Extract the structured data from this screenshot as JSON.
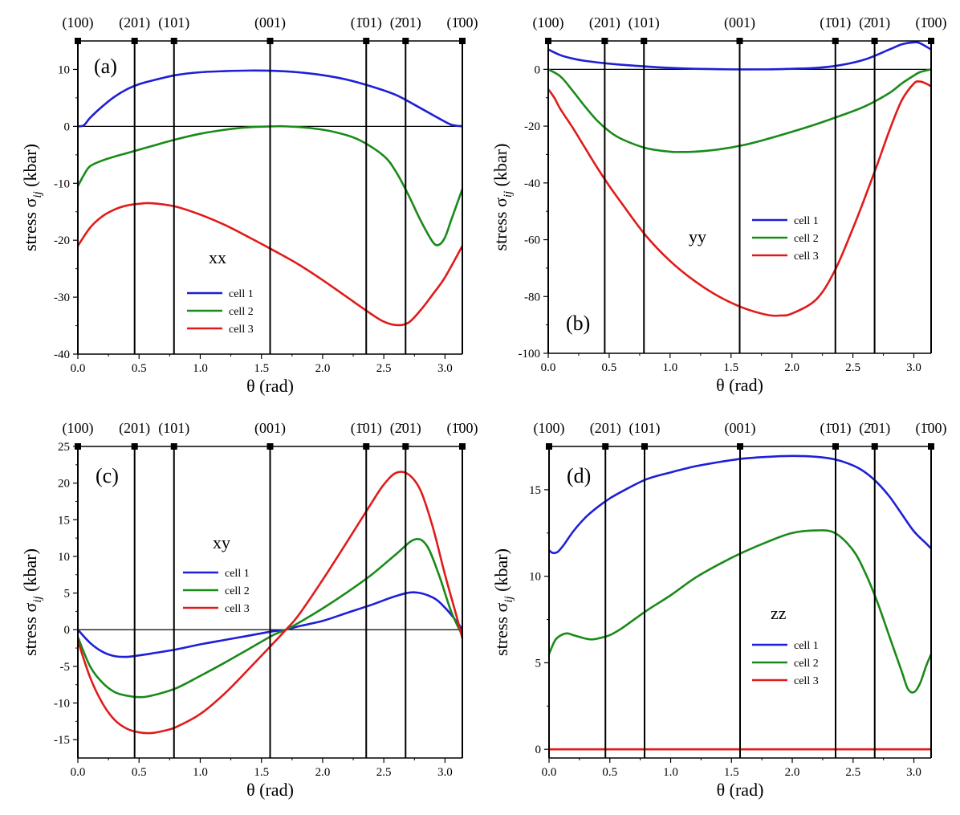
{
  "figure": {
    "xlabel": "θ (rad)",
    "ylabel_main": "stress σ",
    "ylabel_sub": "ij",
    "ylabel_unit": " (kbar)",
    "directions": [
      {
        "label": "(100)",
        "theta": 0.0
      },
      {
        "label": "(201)",
        "theta": 0.4636
      },
      {
        "label": "(101)",
        "theta": 0.7854
      },
      {
        "label": "(001)",
        "theta": 1.5708
      },
      {
        "label": "(1̄01)",
        "theta": 2.3562
      },
      {
        "label": "(2̄01)",
        "theta": 2.6779
      },
      {
        "label": "(1̄00)",
        "theta": 3.1416
      }
    ],
    "colors": {
      "cell1": "#1f1fd6",
      "cell2": "#1a8a1a",
      "cell3": "#e01b1b",
      "axis": "#000000"
    }
  },
  "chart_data": [
    {
      "id": "a",
      "type": "line",
      "panel_label": "(a)",
      "component": "xx",
      "xlim": [
        0,
        3.1416
      ],
      "ylim": [
        -40,
        15
      ],
      "xticks": [
        0.0,
        0.5,
        1.0,
        1.5,
        2.0,
        2.5,
        3.0
      ],
      "xtick_labels": [
        "0.0",
        "0.5",
        "1.0",
        "1.5",
        "2.0",
        "2.5",
        "3.0"
      ],
      "yticks": [
        -40,
        -30,
        -20,
        -10,
        0,
        10
      ],
      "ytick_labels": [
        "-40",
        "-30",
        "-20",
        "-10",
        "0",
        "10"
      ],
      "legend": [
        "cell 1",
        "cell 2",
        "cell 3"
      ],
      "series": [
        {
          "name": "cell 1",
          "x": [
            0,
            0.05,
            0.1,
            0.2,
            0.3,
            0.4,
            0.5,
            0.6,
            0.8,
            1.0,
            1.2,
            1.4,
            1.6,
            1.8,
            2.0,
            2.2,
            2.4,
            2.6,
            2.8,
            2.95,
            3.05,
            3.1416
          ],
          "y": [
            0,
            0.2,
            1.5,
            3.5,
            5.2,
            6.5,
            7.4,
            8.0,
            9.0,
            9.5,
            9.7,
            9.8,
            9.75,
            9.5,
            9.0,
            8.2,
            7.0,
            5.5,
            3.2,
            1.4,
            0.3,
            0
          ]
        },
        {
          "name": "cell 2",
          "x": [
            0,
            0.05,
            0.1,
            0.2,
            0.3,
            0.4,
            0.5,
            0.6,
            0.8,
            1.0,
            1.2,
            1.4,
            1.6,
            1.7,
            1.9,
            2.1,
            2.3,
            2.5,
            2.6,
            2.7,
            2.8,
            2.9,
            2.95,
            3.0,
            3.05,
            3.1416
          ],
          "y": [
            -10.5,
            -8.5,
            -7.0,
            -6.0,
            -5.3,
            -4.7,
            -4.1,
            -3.5,
            -2.3,
            -1.3,
            -0.6,
            -0.15,
            0,
            0,
            -0.3,
            -1.0,
            -2.4,
            -5.2,
            -8.0,
            -12.0,
            -16.5,
            -20.3,
            -20.8,
            -19.5,
            -16.5,
            -11.0
          ]
        },
        {
          "name": "cell 3",
          "x": [
            0,
            0.1,
            0.2,
            0.3,
            0.4,
            0.5,
            0.6,
            0.8,
            1.0,
            1.2,
            1.4,
            1.6,
            1.8,
            2.0,
            2.2,
            2.4,
            2.5,
            2.6,
            2.7,
            2.8,
            2.9,
            3.0,
            3.1416
          ],
          "y": [
            -21,
            -17.8,
            -15.8,
            -14.6,
            -13.9,
            -13.6,
            -13.5,
            -14.1,
            -15.5,
            -17.3,
            -19.5,
            -21.8,
            -24.2,
            -27.0,
            -30.0,
            -33.0,
            -34.3,
            -34.9,
            -34.5,
            -32.3,
            -29.5,
            -26.5,
            -21
          ]
        }
      ]
    },
    {
      "id": "b",
      "type": "line",
      "panel_label": "(b)",
      "component": "yy",
      "xlim": [
        0,
        3.1416
      ],
      "ylim": [
        -100,
        10
      ],
      "xticks": [
        0.0,
        0.5,
        1.0,
        1.5,
        2.0,
        2.5,
        3.0
      ],
      "xtick_labels": [
        "0.0",
        "0.5",
        "1.0",
        "1.5",
        "2.0",
        "2.5",
        "3.0"
      ],
      "yticks": [
        -100,
        -80,
        -60,
        -40,
        -20,
        0
      ],
      "ytick_labels": [
        "-100",
        "-80",
        "-60",
        "-40",
        "-20",
        "0"
      ],
      "legend": [
        "cell 1",
        "cell 2",
        "cell 3"
      ],
      "series": [
        {
          "name": "cell 1",
          "x": [
            0,
            0.1,
            0.2,
            0.3,
            0.5,
            0.8,
            1.0,
            1.2,
            1.5,
            1.8,
            2.0,
            2.2,
            2.4,
            2.6,
            2.8,
            2.9,
            3.0,
            3.05,
            3.1416
          ],
          "y": [
            7,
            5,
            3.8,
            3.0,
            2.0,
            1.0,
            0.5,
            0.2,
            0,
            0,
            0.2,
            0.5,
            1.5,
            3.5,
            7.0,
            8.8,
            9.5,
            9.2,
            7
          ]
        },
        {
          "name": "cell 2",
          "x": [
            0,
            0.1,
            0.2,
            0.3,
            0.4,
            0.5,
            0.6,
            0.8,
            1.0,
            1.1,
            1.2,
            1.4,
            1.6,
            1.8,
            2.0,
            2.2,
            2.4,
            2.6,
            2.8,
            2.9,
            3.0,
            3.05,
            3.1416
          ],
          "y": [
            0,
            -2.5,
            -7.5,
            -13.0,
            -18.0,
            -21.8,
            -24.5,
            -27.7,
            -29.0,
            -29.1,
            -29.0,
            -28.2,
            -26.7,
            -24.5,
            -22.0,
            -19.3,
            -16.3,
            -13.0,
            -8.3,
            -5.0,
            -2.2,
            -1.0,
            0
          ]
        },
        {
          "name": "cell 3",
          "x": [
            0,
            0.05,
            0.1,
            0.2,
            0.3,
            0.4,
            0.5,
            0.6,
            0.8,
            1.0,
            1.2,
            1.4,
            1.6,
            1.8,
            1.9,
            2.0,
            2.2,
            2.35,
            2.5,
            2.6,
            2.7,
            2.8,
            2.9,
            3.0,
            3.05,
            3.1,
            3.1416
          ],
          "y": [
            -7,
            -10,
            -14,
            -20.5,
            -27.5,
            -34.5,
            -41.0,
            -47.0,
            -58.5,
            -67.5,
            -74.5,
            -80.0,
            -84.0,
            -86.5,
            -86.7,
            -86.0,
            -81.0,
            -71.0,
            -56.0,
            -45.0,
            -33.5,
            -21.5,
            -11.0,
            -5.0,
            -4.3,
            -5.0,
            -6
          ]
        }
      ]
    },
    {
      "id": "c",
      "type": "line",
      "panel_label": "(c)",
      "component": "xy",
      "xlim": [
        0,
        3.1416
      ],
      "ylim": [
        -17.5,
        25
      ],
      "xticks": [
        0.0,
        0.5,
        1.0,
        1.5,
        2.0,
        2.5,
        3.0
      ],
      "xtick_labels": [
        "0.0",
        "0.5",
        "1.0",
        "1.5",
        "2.0",
        "2.5",
        "3.0"
      ],
      "yticks": [
        -15,
        -10,
        -5,
        0,
        5,
        10,
        15,
        20,
        25
      ],
      "ytick_labels": [
        "-15",
        "-10",
        "-5",
        "0",
        "5",
        "10",
        "15",
        "20",
        "25"
      ],
      "legend": [
        "cell 1",
        "cell 2",
        "cell 3"
      ],
      "series": [
        {
          "name": "cell 1",
          "x": [
            0,
            0.1,
            0.2,
            0.3,
            0.4,
            0.5,
            0.6,
            0.8,
            1.0,
            1.2,
            1.4,
            1.6,
            1.7,
            1.8,
            2.0,
            2.2,
            2.4,
            2.6,
            2.75,
            2.9,
            3.0,
            3.1,
            3.1416
          ],
          "y": [
            0,
            -1.8,
            -3.0,
            -3.6,
            -3.7,
            -3.5,
            -3.25,
            -2.7,
            -2.0,
            -1.4,
            -0.8,
            -0.2,
            0,
            0.45,
            1.2,
            2.3,
            3.4,
            4.6,
            5.1,
            4.4,
            3.0,
            1.0,
            0
          ]
        },
        {
          "name": "cell 2",
          "x": [
            0,
            0.1,
            0.2,
            0.3,
            0.4,
            0.5,
            0.6,
            0.8,
            1.0,
            1.2,
            1.4,
            1.6,
            1.7,
            1.8,
            2.0,
            2.2,
            2.4,
            2.6,
            2.75,
            2.85,
            2.95,
            3.05,
            3.1416
          ],
          "y": [
            -1.0,
            -5.0,
            -7.2,
            -8.5,
            -9.0,
            -9.2,
            -9.0,
            -8.0,
            -6.3,
            -4.5,
            -2.6,
            -0.7,
            0,
            0.9,
            2.9,
            5.1,
            7.5,
            10.3,
            12.3,
            11.5,
            7.5,
            2.5,
            -0.8
          ]
        },
        {
          "name": "cell 3",
          "x": [
            0,
            0.1,
            0.2,
            0.3,
            0.4,
            0.5,
            0.6,
            0.7,
            0.8,
            1.0,
            1.2,
            1.4,
            1.6,
            1.7,
            1.8,
            2.0,
            2.2,
            2.4,
            2.5,
            2.6,
            2.7,
            2.8,
            2.9,
            3.0,
            3.1,
            3.1416
          ],
          "y": [
            -1.5,
            -6.5,
            -10.0,
            -12.3,
            -13.5,
            -14.0,
            -14.1,
            -13.8,
            -13.3,
            -11.5,
            -8.7,
            -5.3,
            -1.8,
            0,
            1.9,
            6.8,
            12.0,
            17.3,
            19.8,
            21.4,
            21.2,
            19.0,
            14.0,
            7.5,
            1.5,
            -1.2
          ]
        }
      ]
    },
    {
      "id": "d",
      "type": "line",
      "panel_label": "(d)",
      "component": "zz",
      "xlim": [
        0,
        3.1416
      ],
      "ylim": [
        -0.5,
        17.5
      ],
      "xticks": [
        0.0,
        0.5,
        1.0,
        1.5,
        2.0,
        2.5,
        3.0
      ],
      "xtick_labels": [
        "0.0",
        "0.5",
        "1.0",
        "1.5",
        "2.0",
        "2.5",
        "3.0"
      ],
      "yticks": [
        0,
        5,
        10,
        15
      ],
      "ytick_labels": [
        "0",
        "5",
        "10",
        "15"
      ],
      "legend": [
        "cell 1",
        "cell 2",
        "cell 3"
      ],
      "series": [
        {
          "name": "cell 1",
          "x": [
            0,
            0.03,
            0.07,
            0.12,
            0.2,
            0.3,
            0.4,
            0.5,
            0.6,
            0.8,
            1.0,
            1.2,
            1.4,
            1.6,
            1.8,
            2.0,
            2.2,
            2.35,
            2.5,
            2.6,
            2.7,
            2.8,
            2.9,
            3.0,
            3.1,
            3.1416
          ],
          "y": [
            11.5,
            11.35,
            11.4,
            11.8,
            12.6,
            13.4,
            14.0,
            14.5,
            14.9,
            15.6,
            16.0,
            16.35,
            16.6,
            16.8,
            16.9,
            16.95,
            16.9,
            16.75,
            16.4,
            16.0,
            15.4,
            14.6,
            13.6,
            12.6,
            11.9,
            11.6
          ]
        },
        {
          "name": "cell 2",
          "x": [
            0,
            0.05,
            0.1,
            0.15,
            0.2,
            0.3,
            0.35,
            0.4,
            0.5,
            0.6,
            0.8,
            1.0,
            1.2,
            1.4,
            1.6,
            1.8,
            2.0,
            2.2,
            2.35,
            2.5,
            2.6,
            2.7,
            2.8,
            2.9,
            2.95,
            3.0,
            3.05,
            3.1,
            3.1416
          ],
          "y": [
            5.5,
            6.3,
            6.6,
            6.7,
            6.6,
            6.4,
            6.35,
            6.4,
            6.6,
            7.0,
            8.0,
            8.9,
            9.9,
            10.7,
            11.4,
            12.0,
            12.5,
            12.65,
            12.5,
            11.5,
            10.2,
            8.5,
            6.5,
            4.5,
            3.5,
            3.3,
            3.8,
            4.8,
            5.5
          ]
        },
        {
          "name": "cell 3",
          "x": [
            0,
            3.1416
          ],
          "y": [
            0,
            0
          ]
        }
      ]
    }
  ]
}
